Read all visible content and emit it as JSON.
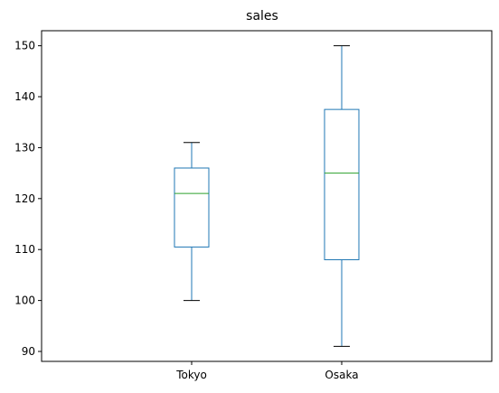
{
  "chart_data": {
    "type": "box",
    "title": "sales",
    "xlabel": "",
    "ylabel": "",
    "ylim": [
      88.05,
      152.95
    ],
    "yticks": [
      90,
      100,
      110,
      120,
      130,
      140,
      150
    ],
    "categories": [
      "Tokyo",
      "Osaka"
    ],
    "boxes": [
      {
        "category": "Tokyo",
        "whisker_low": 100,
        "q1": 110.5,
        "median": 121,
        "q3": 126,
        "whisker_high": 131
      },
      {
        "category": "Osaka",
        "whisker_low": 91,
        "q1": 108,
        "median": 125,
        "q3": 137.5,
        "whisker_high": 150
      }
    ],
    "grid": false,
    "colors": {
      "box": "#1f77b4",
      "median": "#2ca02c",
      "whisker": "#1f77b4",
      "cap": "#000000",
      "axis": "#000000"
    }
  }
}
